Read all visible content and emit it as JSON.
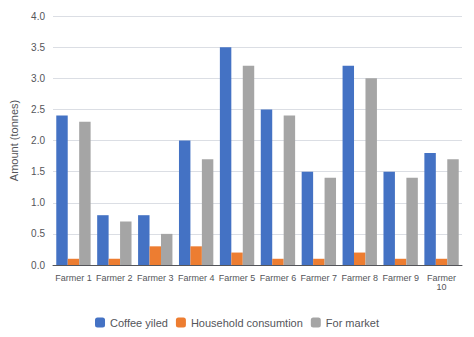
{
  "chart_data": {
    "type": "bar",
    "categories": [
      "Farmer 1",
      "Farmer 2",
      "Farmer 3",
      "Farmer 4",
      "Farmer 5",
      "Farmer 6",
      "Farmer 7",
      "Farmer 8",
      "Farmer 9",
      "Farmer\n10"
    ],
    "series": [
      {
        "name": "Coffee yiled",
        "color": "#4472C4",
        "values": [
          2.4,
          0.8,
          0.8,
          2.0,
          3.5,
          2.5,
          1.5,
          3.2,
          1.5,
          1.8
        ]
      },
      {
        "name": "Household consumtion",
        "color": "#ED7D31",
        "values": [
          0.1,
          0.1,
          0.3,
          0.3,
          0.2,
          0.1,
          0.1,
          0.2,
          0.1,
          0.1
        ]
      },
      {
        "name": "For market",
        "color": "#A5A5A5",
        "values": [
          2.3,
          0.7,
          0.5,
          1.7,
          3.2,
          2.4,
          1.4,
          3.0,
          1.4,
          1.7
        ]
      }
    ],
    "ylabel": "Amount (tonnes)",
    "ylim": [
      0.0,
      4.0
    ],
    "yticks": [
      {
        "value": 0.0,
        "label": "0.0"
      },
      0.5,
      {
        "value": 1.0,
        "label": "1.0"
      },
      1.5,
      {
        "value": 2.0,
        "label": "2.0"
      },
      2.5,
      {
        "value": 3.0,
        "label": "3.0"
      },
      3.5,
      {
        "value": 4.0,
        "label": "4.0"
      }
    ],
    "grid": true,
    "legend": "bottom"
  }
}
